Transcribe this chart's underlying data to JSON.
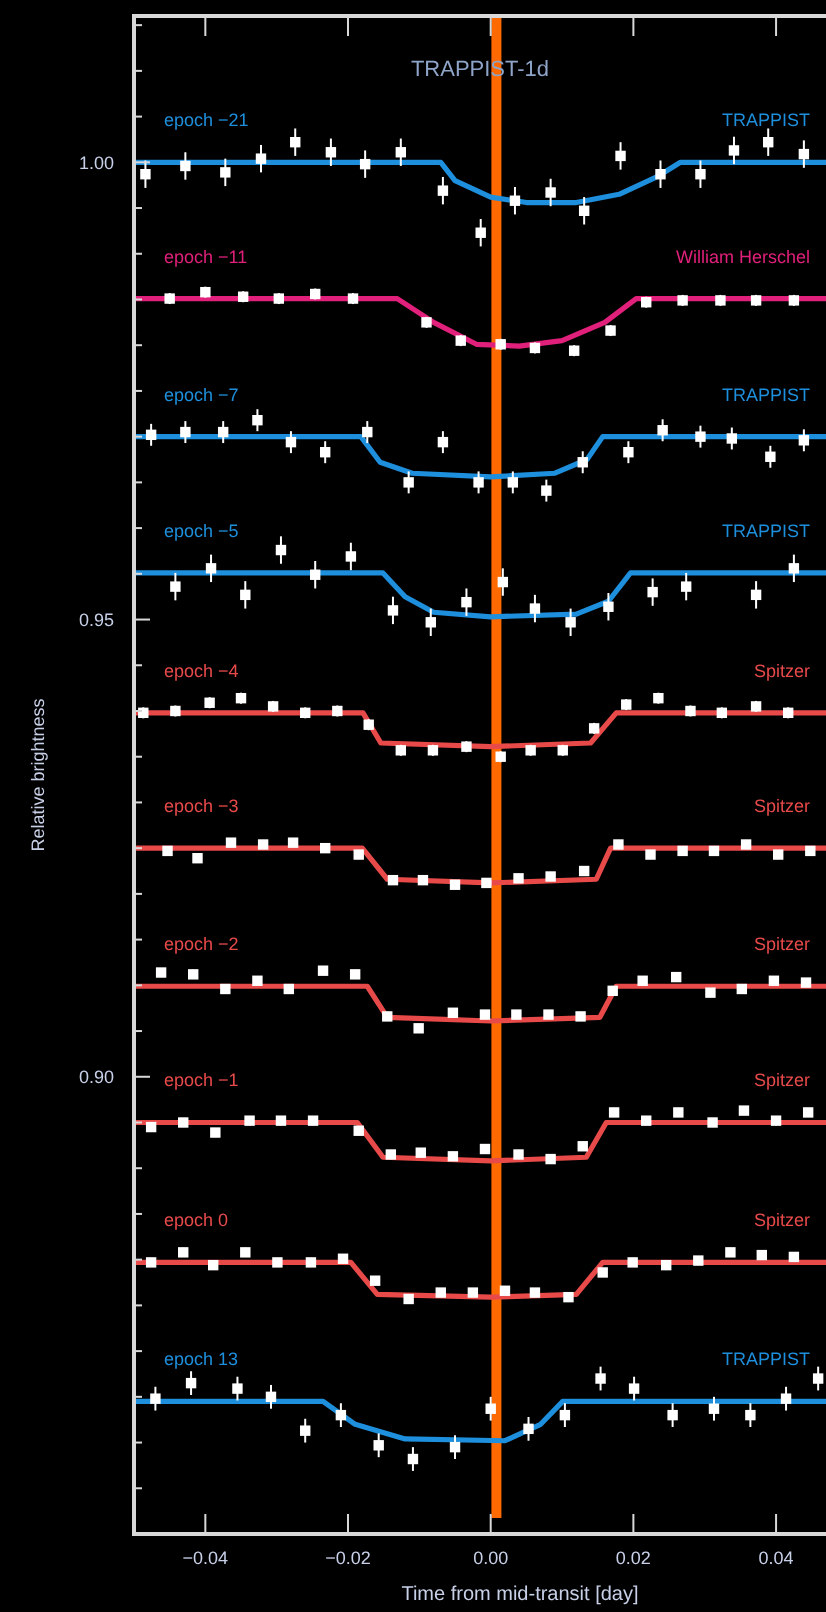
{
  "chart_data": {
    "type": "scatter",
    "title": "TRAPPIST-1d",
    "xlabel": "Time from mid-transit [day]",
    "ylabel": "Relative brightness",
    "xlim": [
      -0.05,
      0.047
    ],
    "ylim": [
      0.85,
      1.016
    ],
    "xticks": [
      {
        "value": -0.04,
        "label": "−0.04"
      },
      {
        "value": -0.02,
        "label": "−0.02"
      },
      {
        "value": 0,
        "label": "0.00"
      },
      {
        "value": 0.02,
        "label": "0.02"
      },
      {
        "value": 0.04,
        "label": "0.04"
      }
    ],
    "yticks": [
      {
        "value": 0.855,
        "label": null
      },
      {
        "value": 0.86,
        "label": null
      },
      {
        "value": 0.865,
        "label": null
      },
      {
        "value": 0.87,
        "label": null
      },
      {
        "value": 0.875,
        "label": null
      },
      {
        "value": 0.88,
        "label": null
      },
      {
        "value": 0.885,
        "label": null
      },
      {
        "value": 0.89,
        "label": null
      },
      {
        "value": 0.895,
        "label": null
      },
      {
        "value": 0.9,
        "label": "0.90"
      },
      {
        "value": 0.905,
        "label": null
      },
      {
        "value": 0.91,
        "label": null
      },
      {
        "value": 0.915,
        "label": null
      },
      {
        "value": 0.92,
        "label": null
      },
      {
        "value": 0.925,
        "label": null
      },
      {
        "value": 0.93,
        "label": null
      },
      {
        "value": 0.935,
        "label": null
      },
      {
        "value": 0.94,
        "label": null
      },
      {
        "value": 0.945,
        "label": null
      },
      {
        "value": 0.95,
        "label": "0.95"
      },
      {
        "value": 0.955,
        "label": null
      },
      {
        "value": 0.96,
        "label": null
      },
      {
        "value": 0.965,
        "label": null
      },
      {
        "value": 0.97,
        "label": null
      },
      {
        "value": 0.975,
        "label": null
      },
      {
        "value": 0.98,
        "label": null
      },
      {
        "value": 0.985,
        "label": null
      },
      {
        "value": 0.99,
        "label": null
      },
      {
        "value": 0.995,
        "label": null
      },
      {
        "value": 1.0,
        "label": "1.00"
      },
      {
        "value": 1.005,
        "label": null
      },
      {
        "value": 1.01,
        "label": null
      },
      {
        "value": 1.015,
        "label": null
      }
    ],
    "line_style": "solid",
    "ref_lines": [
      {
        "axis": "x",
        "value": 0.0008,
        "color": "#ff6a00"
      }
    ],
    "annotations": [
      "TRAPPIST",
      "William Herschel",
      "TRAPPIST",
      "TRAPPIST",
      "Spitzer",
      "Spitzer",
      "Spitzer",
      "Spitzer",
      "Spitzer",
      "TRAPPIST"
    ],
    "series": [
      {
        "type": "line",
        "name": "epoch −21",
        "color": "#1e8fdc",
        "x": [
          -0.05,
          -0.007,
          -0.005,
          0.0,
          0.005,
          0.012,
          0.018,
          0.0235,
          0.0266,
          0.047
        ],
        "values": [
          1.0,
          1.0,
          0.998,
          0.9962,
          0.9956,
          0.9956,
          0.9965,
          0.9985,
          1.0,
          1.0
        ],
        "marker": "none"
      },
      {
        "marker": "square",
        "color": "#ffffff",
        "x": [
          -0.0484,
          -0.0428,
          -0.0372,
          -0.0322,
          -0.0274,
          -0.0224,
          -0.0176,
          -0.0126,
          -0.0067,
          -0.0014,
          0.0034,
          0.0084,
          0.0131,
          0.0182,
          0.0238,
          0.0294,
          0.0341,
          0.0389,
          0.0439
        ],
        "values": [
          0.9987,
          0.9996,
          0.9989,
          1.0004,
          1.0022,
          1.0011,
          0.9998,
          1.0011,
          0.9969,
          0.9923,
          0.9958,
          0.9967,
          0.9947,
          1.0007,
          0.9987,
          0.9987,
          1.0013,
          1.0022,
          1.0009
        ],
        "errors": [
          0.0015,
          0.0015,
          0.0015,
          0.0015,
          0.0015,
          0.0015,
          0.0015,
          0.0015,
          0.0015,
          0.0015,
          0.0015,
          0.0015,
          0.0015,
          0.0015,
          0.0015,
          0.0015,
          0.0015,
          0.0015,
          0.0015
        ]
      },
      {
        "type": "line",
        "name": "epoch −11",
        "color": "#e0207a",
        "x": [
          -0.05,
          -0.0131,
          -0.008,
          -0.002,
          0.004,
          0.01,
          0.016,
          0.0204,
          0.047
        ],
        "values": [
          0.9851,
          0.9851,
          0.9825,
          0.9801,
          0.9799,
          0.9805,
          0.9825,
          0.9851,
          0.9851
        ],
        "marker": "none"
      },
      {
        "marker": "square",
        "color": "#ffffff",
        "x": [
          -0.045,
          -0.04,
          -0.0347,
          -0.0297,
          -0.0246,
          -0.0193,
          -0.009,
          -0.0042,
          0.0014,
          0.0062,
          0.0117,
          0.0168,
          0.0218,
          0.0269,
          0.0322,
          0.0372,
          0.0425
        ],
        "values": [
          0.9851,
          0.9858,
          0.9853,
          0.9851,
          0.9856,
          0.9851,
          0.9825,
          0.9805,
          0.9801,
          0.9797,
          0.9794,
          0.9816,
          0.9847,
          0.9849,
          0.9849,
          0.9849,
          0.9849
        ],
        "errors": [
          0.0006,
          0.0006,
          0.0006,
          0.0006,
          0.0006,
          0.0006,
          0.0006,
          0.0006,
          0.0006,
          0.0006,
          0.0006,
          0.0006,
          0.0006,
          0.0006,
          0.0006,
          0.0006,
          0.0006
        ]
      },
      {
        "type": "line",
        "name": "epoch −7",
        "color": "#1e8fdc",
        "x": [
          -0.05,
          -0.0182,
          -0.0155,
          -0.011,
          0.0,
          0.009,
          0.0135,
          0.0157,
          0.047
        ],
        "values": [
          0.97,
          0.97,
          0.9672,
          0.966,
          0.9656,
          0.966,
          0.9675,
          0.97,
          0.97
        ],
        "marker": "none"
      },
      {
        "marker": "square",
        "color": "#ffffff",
        "x": [
          -0.0476,
          -0.0428,
          -0.0375,
          -0.0327,
          -0.028,
          -0.0232,
          -0.0173,
          -0.0115,
          -0.0067,
          -0.0017,
          0.0031,
          0.0078,
          0.0129,
          0.0193,
          0.0241,
          0.0294,
          0.0338,
          0.0392,
          0.0439
        ],
        "values": [
          0.9702,
          0.9705,
          0.9705,
          0.9718,
          0.9694,
          0.9683,
          0.9705,
          0.965,
          0.9694,
          0.965,
          0.965,
          0.9641,
          0.9672,
          0.9683,
          0.9707,
          0.97,
          0.9698,
          0.9678,
          0.9696
        ],
        "errors": [
          0.0012,
          0.0012,
          0.0012,
          0.0012,
          0.0012,
          0.0012,
          0.0012,
          0.0012,
          0.0012,
          0.0012,
          0.0012,
          0.0012,
          0.0012,
          0.0012,
          0.0012,
          0.0012,
          0.0012,
          0.0012,
          0.0012
        ]
      },
      {
        "type": "line",
        "name": "epoch −5",
        "color": "#1e8fdc",
        "x": [
          -0.05,
          -0.0151,
          -0.012,
          -0.008,
          0.0,
          0.012,
          0.0165,
          0.0196,
          0.047
        ],
        "values": [
          0.9551,
          0.9551,
          0.9525,
          0.9508,
          0.9503,
          0.9506,
          0.952,
          0.9551,
          0.9551
        ],
        "marker": "none"
      },
      {
        "marker": "square",
        "color": "#ffffff",
        "x": [
          -0.0442,
          -0.0392,
          -0.0344,
          -0.0294,
          -0.0246,
          -0.0196,
          -0.0137,
          -0.0084,
          -0.0034,
          0.0017,
          0.0062,
          0.0112,
          0.0165,
          0.0227,
          0.0274,
          0.0372,
          0.0425
        ],
        "values": [
          0.9536,
          0.9556,
          0.9527,
          0.9576,
          0.9549,
          0.9569,
          0.951,
          0.9497,
          0.9519,
          0.9541,
          0.9512,
          0.9497,
          0.9514,
          0.953,
          0.9536,
          0.9527,
          0.9556
        ],
        "errors": [
          0.0015,
          0.0015,
          0.0015,
          0.0015,
          0.0015,
          0.0015,
          0.0015,
          0.0015,
          0.0015,
          0.0015,
          0.0015,
          0.0015,
          0.0015,
          0.0015,
          0.0015,
          0.0015,
          0.0015
        ]
      },
      {
        "type": "line",
        "name": "epoch −4",
        "color": "#e84a4a",
        "x": [
          -0.05,
          -0.0179,
          -0.0154,
          0.0,
          0.014,
          0.0176,
          0.047
        ],
        "values": [
          0.9398,
          0.9398,
          0.9365,
          0.9361,
          0.9365,
          0.9398,
          0.9398
        ],
        "marker": "none"
      },
      {
        "marker": "square",
        "color": "#ffffff",
        "x": [
          -0.0487,
          -0.0442,
          -0.0394,
          -0.035,
          -0.0305,
          -0.026,
          -0.0215,
          -0.0171,
          -0.0126,
          -0.0081,
          -0.0034,
          0.0014,
          0.0056,
          0.0101,
          0.0145,
          0.019,
          0.0235,
          0.028,
          0.0324,
          0.0372,
          0.0417
        ],
        "values": [
          0.9398,
          0.94,
          0.9409,
          0.9414,
          0.9405,
          0.9398,
          0.94,
          0.9385,
          0.9357,
          0.9357,
          0.9361,
          0.935,
          0.9357,
          0.9357,
          0.9381,
          0.9407,
          0.9414,
          0.94,
          0.9398,
          0.9405,
          0.9398
        ],
        "errors": [
          0.0006,
          0.0006,
          0.0006,
          0.0006,
          0.0006,
          0.0006,
          0.0006,
          0.0006,
          0.0006,
          0.0006,
          0.0006,
          0.0006,
          0.0006,
          0.0006,
          0.0006,
          0.0006,
          0.0006,
          0.0006,
          0.0006,
          0.0006,
          0.0006
        ]
      },
      {
        "type": "line",
        "name": "epoch −3",
        "color": "#e84a4a",
        "x": [
          -0.05,
          -0.018,
          -0.0145,
          0.0,
          0.0148,
          0.0168,
          0.047
        ],
        "values": [
          0.925,
          0.925,
          0.9216,
          0.9212,
          0.9216,
          0.925,
          0.925
        ],
        "marker": "none"
      },
      {
        "marker": "square",
        "color": "#ffffff",
        "x": [
          -0.0453,
          -0.0411,
          -0.0364,
          -0.0319,
          -0.0277,
          -0.0232,
          -0.0185,
          -0.0137,
          -0.0095,
          -0.005,
          -0.0006,
          0.0039,
          0.0084,
          0.0131,
          0.0179,
          0.0224,
          0.0269,
          0.0313,
          0.0358,
          0.0403,
          0.0448
        ],
        "values": [
          0.9247,
          0.9239,
          0.9256,
          0.9254,
          0.9256,
          0.925,
          0.9243,
          0.9215,
          0.9215,
          0.921,
          0.9212,
          0.9217,
          0.9219,
          0.9225,
          0.9254,
          0.9243,
          0.9247,
          0.9247,
          0.9254,
          0.9243,
          0.9247
        ],
        "errors": [
          0.0005,
          0.0005,
          0.0005,
          0.0005,
          0.0005,
          0.0005,
          0.0005,
          0.0005,
          0.0005,
          0.0005,
          0.0005,
          0.0005,
          0.0005,
          0.0005,
          0.0005,
          0.0005,
          0.0005,
          0.0005,
          0.0005,
          0.0005,
          0.0005
        ]
      },
      {
        "type": "line",
        "name": "epoch −2",
        "color": "#e84a4a",
        "x": [
          -0.05,
          -0.0173,
          -0.0145,
          0.0,
          0.0153,
          0.0176,
          0.047
        ],
        "values": [
          0.9099,
          0.9099,
          0.9065,
          0.9061,
          0.9065,
          0.9099,
          0.9099
        ],
        "marker": "none"
      },
      {
        "marker": "square",
        "color": "#ffffff",
        "x": [
          -0.0462,
          -0.0417,
          -0.0372,
          -0.0327,
          -0.0283,
          -0.0235,
          -0.019,
          -0.0145,
          -0.0101,
          -0.0053,
          -0.0008,
          0.0036,
          0.0081,
          0.0126,
          0.0171,
          0.0213,
          0.026,
          0.0308,
          0.0352,
          0.0397,
          0.0442
        ],
        "values": [
          0.9114,
          0.9112,
          0.9096,
          0.9105,
          0.9096,
          0.9116,
          0.9112,
          0.9066,
          0.9053,
          0.907,
          0.9068,
          0.9068,
          0.9068,
          0.9066,
          0.9094,
          0.9105,
          0.9109,
          0.9092,
          0.9096,
          0.9105,
          0.9103
        ],
        "errors": [
          0.0005,
          0.0005,
          0.0005,
          0.0005,
          0.0005,
          0.0005,
          0.0005,
          0.0005,
          0.0005,
          0.0005,
          0.0005,
          0.0005,
          0.0005,
          0.0005,
          0.0005,
          0.0005,
          0.0005,
          0.0005,
          0.0005,
          0.0005,
          0.0005
        ]
      },
      {
        "type": "line",
        "name": "epoch −1",
        "color": "#e84a4a",
        "x": [
          -0.05,
          -0.0187,
          -0.0151,
          0.0,
          0.0134,
          0.0162,
          0.047
        ],
        "values": [
          0.895,
          0.895,
          0.8912,
          0.8908,
          0.8912,
          0.895,
          0.895
        ],
        "marker": "none"
      },
      {
        "marker": "square",
        "color": "#ffffff",
        "x": [
          -0.0476,
          -0.0431,
          -0.0386,
          -0.0338,
          -0.0294,
          -0.0249,
          -0.0185,
          -0.014,
          -0.0098,
          -0.0053,
          -0.0008,
          0.0039,
          0.0084,
          0.0129,
          0.0173,
          0.0218,
          0.0263,
          0.0311,
          0.0355,
          0.04,
          0.0445
        ],
        "values": [
          0.8945,
          0.895,
          0.8939,
          0.8952,
          0.8952,
          0.8952,
          0.8941,
          0.8915,
          0.8917,
          0.8913,
          0.8921,
          0.8915,
          0.891,
          0.8924,
          0.8961,
          0.8952,
          0.8961,
          0.895,
          0.8963,
          0.8952,
          0.8961
        ],
        "errors": [
          0.0005,
          0.0005,
          0.0005,
          0.0005,
          0.0005,
          0.0005,
          0.0005,
          0.0005,
          0.0005,
          0.0005,
          0.0005,
          0.0005,
          0.0005,
          0.0005,
          0.0005,
          0.0005,
          0.0005,
          0.0005,
          0.0005,
          0.0005,
          0.0005
        ]
      },
      {
        "type": "line",
        "name": "epoch 0",
        "color": "#e84a4a",
        "x": [
          -0.05,
          -0.0196,
          -0.0159,
          0.0,
          0.012,
          0.0157,
          0.047
        ],
        "values": [
          0.8797,
          0.8797,
          0.8762,
          0.8759,
          0.8762,
          0.8797,
          0.8797
        ],
        "marker": "none"
      },
      {
        "marker": "square",
        "color": "#ffffff",
        "x": [
          -0.0476,
          -0.0431,
          -0.0389,
          -0.0344,
          -0.0299,
          -0.0252,
          -0.0207,
          -0.0162,
          -0.0115,
          -0.007,
          -0.0025,
          0.002,
          0.0062,
          0.0109,
          0.0157,
          0.0199,
          0.0246,
          0.0291,
          0.0336,
          0.038,
          0.0425
        ],
        "values": [
          0.8797,
          0.8808,
          0.8794,
          0.8808,
          0.8797,
          0.8797,
          0.8801,
          0.8777,
          0.8757,
          0.8764,
          0.8764,
          0.8766,
          0.8764,
          0.8759,
          0.8786,
          0.8797,
          0.8794,
          0.8799,
          0.8808,
          0.8805,
          0.8803
        ],
        "errors": [
          0.0005,
          0.0005,
          0.0005,
          0.0005,
          0.0005,
          0.0005,
          0.0005,
          0.0005,
          0.0005,
          0.0005,
          0.0005,
          0.0005,
          0.0005,
          0.0005,
          0.0005,
          0.0005,
          0.0005,
          0.0005,
          0.0005,
          0.0005,
          0.0005
        ]
      },
      {
        "type": "line",
        "name": "epoch 13",
        "color": "#1e8fdc",
        "x": [
          -0.05,
          -0.0235,
          -0.019,
          -0.012,
          0.002,
          0.007,
          0.0101,
          0.047
        ],
        "values": [
          0.8645,
          0.8645,
          0.862,
          0.8604,
          0.8602,
          0.862,
          0.8645,
          0.8645
        ],
        "marker": "none"
      },
      {
        "marker": "square",
        "color": "#ffffff",
        "x": [
          -0.047,
          -0.042,
          -0.0355,
          -0.0308,
          -0.026,
          -0.021,
          -0.0157,
          -0.0109,
          -0.005,
          0.0,
          0.0053,
          0.0104,
          0.0154,
          0.0201,
          0.0255,
          0.0313,
          0.0364,
          0.0414,
          0.0459
        ],
        "values": [
          0.8648,
          0.8665,
          0.8659,
          0.865,
          0.8613,
          0.863,
          0.8597,
          0.8582,
          0.8595,
          0.8637,
          0.8615,
          0.863,
          0.867,
          0.8659,
          0.863,
          0.8637,
          0.863,
          0.8648,
          0.867
        ],
        "errors": [
          0.0013,
          0.0013,
          0.0013,
          0.0013,
          0.0013,
          0.0013,
          0.0013,
          0.0013,
          0.0013,
          0.0013,
          0.0013,
          0.0013,
          0.0013,
          0.0013,
          0.0013,
          0.0013,
          0.0013,
          0.0013,
          0.0013
        ]
      }
    ]
  }
}
